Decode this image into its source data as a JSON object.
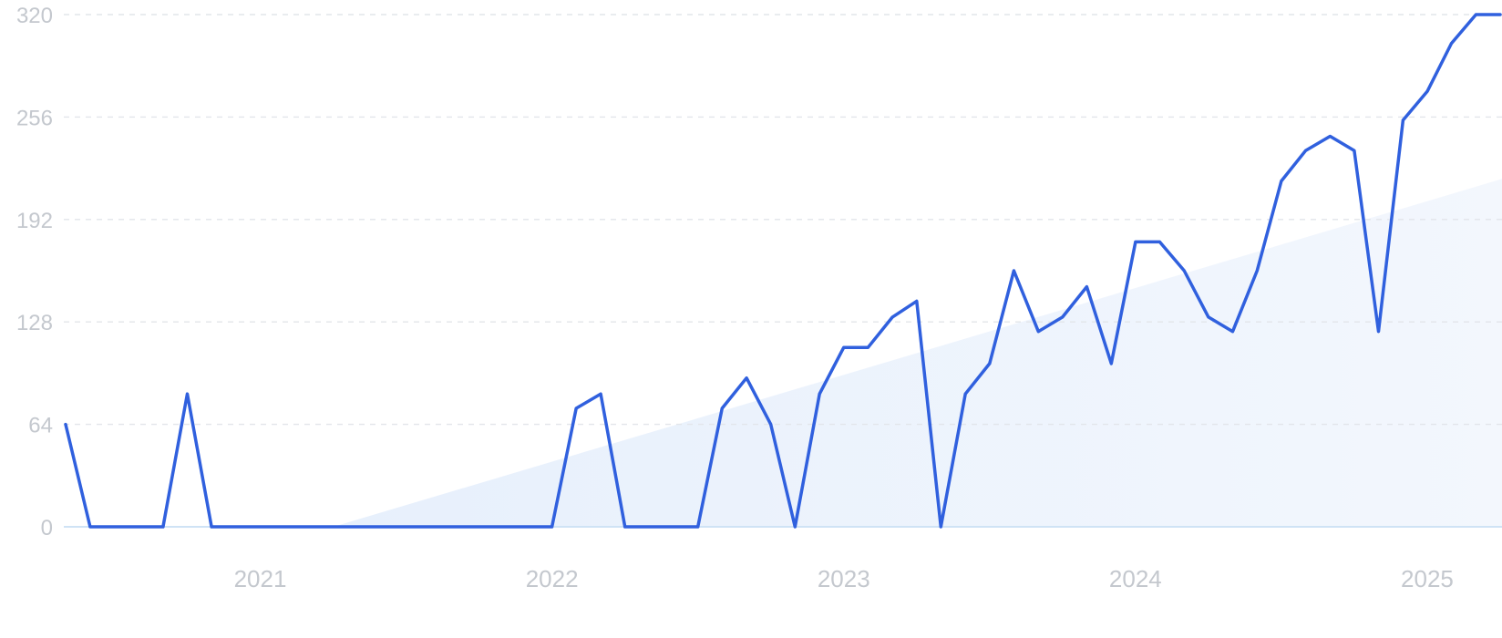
{
  "chart_data": {
    "type": "line",
    "title": "",
    "xlabel": "",
    "ylabel": "",
    "ylim": [
      0,
      320
    ],
    "y_ticks": [
      {
        "value": 0,
        "label": "0"
      },
      {
        "value": 64,
        "label": "64"
      },
      {
        "value": 128,
        "label": "128"
      },
      {
        "value": 192,
        "label": "192"
      },
      {
        "value": 256,
        "label": "256"
      },
      {
        "value": 320,
        "label": "320"
      }
    ],
    "x_ticks": [
      {
        "x": 2021.0,
        "label": "2021"
      },
      {
        "x": 2022.0,
        "label": "2022"
      },
      {
        "x": 2023.0,
        "label": "2023"
      },
      {
        "x": 2024.0,
        "label": "2024"
      },
      {
        "x": 2025.0,
        "label": "2025"
      }
    ],
    "xlim": [
      2020.333,
      2025.25
    ],
    "grid": true,
    "legend": "none",
    "colors": {
      "line": "#3060de",
      "trend_fill": "#dbe9fb",
      "grid": "#e2e5ea",
      "baseline": "#cfe3f5",
      "tick_text": "#c4c8ce"
    },
    "series": [
      {
        "x": [
          2020.333,
          2020.417,
          2020.5,
          2020.583,
          2020.667,
          2020.75,
          2020.833,
          2020.917,
          2021.0,
          2021.083,
          2021.167,
          2021.25,
          2021.333,
          2021.417,
          2021.5,
          2021.583,
          2021.667,
          2021.75,
          2021.833,
          2021.917,
          2022.0,
          2022.083,
          2022.167,
          2022.25,
          2022.333,
          2022.417,
          2022.5,
          2022.583,
          2022.667,
          2022.75,
          2022.833,
          2022.917,
          2023.0,
          2023.083,
          2023.167,
          2023.25,
          2023.333,
          2023.417,
          2023.5,
          2023.583,
          2023.667,
          2023.75,
          2023.833,
          2023.917,
          2024.0,
          2024.083,
          2024.167,
          2024.25,
          2024.333,
          2024.417,
          2024.5,
          2024.583,
          2024.667,
          2024.75,
          2024.833,
          2024.917,
          2025.0,
          2025.083,
          2025.167,
          2025.25
        ],
        "values": [
          64,
          0,
          0,
          0,
          0,
          83,
          0,
          0,
          0,
          0,
          0,
          0,
          0,
          0,
          0,
          0,
          0,
          0,
          0,
          0,
          0,
          74,
          83,
          0,
          0,
          0,
          0,
          74,
          93,
          64,
          0,
          83,
          112,
          112,
          131,
          141,
          0,
          83,
          102,
          160,
          122,
          131,
          150,
          102,
          178,
          178,
          160,
          131,
          122,
          160,
          216,
          235,
          244,
          235,
          122,
          254,
          272,
          302,
          320,
          320
        ]
      }
    ],
    "trend": {
      "x": [
        2020.333,
        2021.25,
        2025.25
      ],
      "values": [
        0,
        0,
        217
      ]
    }
  }
}
